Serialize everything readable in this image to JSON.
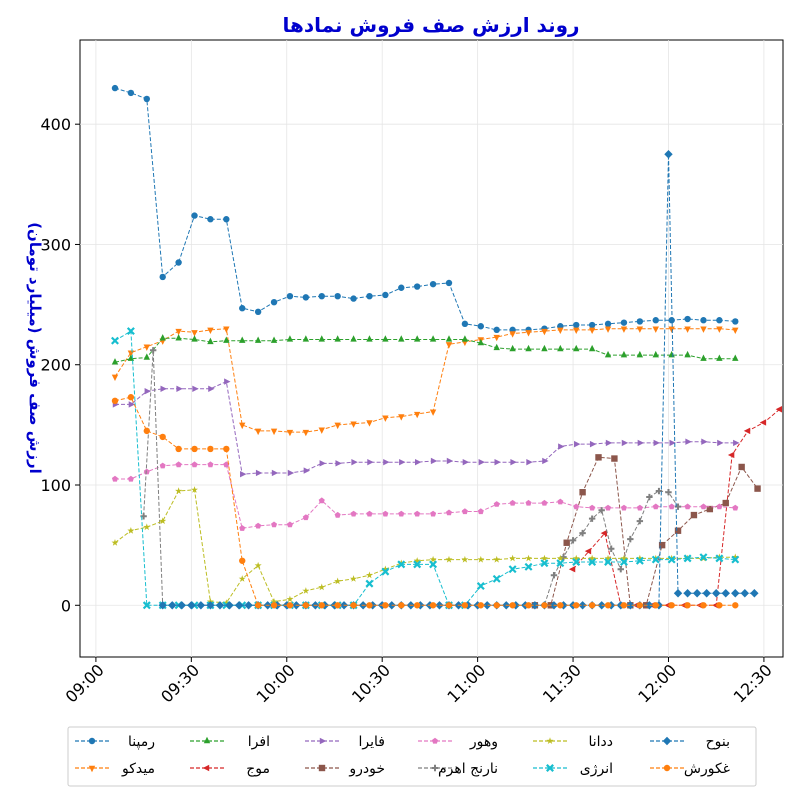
{
  "chart_data": {
    "type": "line",
    "title": "روند ارزش صف فروش نمادها",
    "xlabel": "",
    "ylabel": "ارزش صف فروش (میلیارد تومان)",
    "xlim": [
      "09:00",
      "12:30"
    ],
    "ylim": [
      -43,
      470
    ],
    "xticks": [
      "09:00",
      "09:30",
      "10:00",
      "10:30",
      "11:00",
      "11:30",
      "12:00",
      "12:30"
    ],
    "yticks": [
      0,
      100,
      200,
      300,
      400
    ],
    "grid": true,
    "legend_position": "bottom",
    "times": [
      "09:06",
      "09:09",
      "09:12",
      "09:15",
      "09:18",
      "09:21",
      "09:24",
      "09:27",
      "09:30",
      "09:33",
      "09:36",
      "09:39",
      "09:42",
      "09:45",
      "09:48",
      "09:51",
      "09:54",
      "09:57",
      "10:00",
      "10:03",
      "10:06",
      "10:09",
      "10:12",
      "10:15",
      "10:18",
      "10:21",
      "10:24",
      "10:27",
      "10:30",
      "10:33",
      "10:36",
      "10:39",
      "10:42",
      "10:45",
      "10:48",
      "10:51",
      "10:54",
      "10:57",
      "11:00",
      "11:03",
      "11:06",
      "11:09",
      "11:12",
      "11:15",
      "11:18",
      "11:21",
      "11:24",
      "11:27",
      "11:30",
      "11:33",
      "11:36",
      "11:39",
      "11:42",
      "11:45",
      "11:48",
      "11:51",
      "11:54",
      "11:57",
      "12:00",
      "12:03",
      "12:06",
      "12:09",
      "12:12",
      "12:15",
      "12:18",
      "12:21",
      "12:24",
      "12:27"
    ],
    "series": [
      {
        "name": "رمپنا",
        "color": "#1f77b4",
        "marker": "circle",
        "start": "09:06",
        "interval_min": 5,
        "values": [
          430,
          426,
          421,
          273,
          285,
          324,
          321,
          321,
          247,
          244,
          252,
          257,
          256,
          257,
          257,
          255,
          257,
          258,
          264,
          265,
          267,
          268,
          234,
          232,
          229,
          229,
          229,
          230,
          232,
          233,
          233,
          234,
          235,
          236,
          237,
          237,
          238,
          237,
          237,
          236
        ]
      },
      {
        "name": "میدکو",
        "color": "#ff7f0e",
        "marker": "tri-down",
        "start": "09:06",
        "interval_min": 5,
        "values": [
          190,
          210,
          215,
          220,
          228,
          227,
          229,
          230,
          150,
          145,
          145,
          144,
          144,
          146,
          150,
          151,
          152,
          156,
          157,
          159,
          161,
          217,
          219,
          221,
          223,
          226,
          227,
          228,
          229,
          229,
          229,
          230,
          230,
          230,
          230,
          230,
          230,
          230,
          230,
          229
        ]
      },
      {
        "name": "افرا",
        "color": "#2ca02c",
        "marker": "tri-up",
        "start": "09:06",
        "interval_min": 5,
        "values": [
          202,
          205,
          206,
          222,
          222,
          221,
          219,
          220,
          220,
          220,
          220,
          221,
          221,
          221,
          221,
          221,
          221,
          221,
          221,
          221,
          221,
          221,
          221,
          218,
          214,
          213,
          213,
          213,
          213,
          213,
          213,
          208,
          208,
          208,
          208,
          208,
          208,
          205,
          205,
          205
        ]
      },
      {
        "name": "موج",
        "color": "#d62728",
        "marker": "tri-left",
        "start": "11:30",
        "interval_min": 5,
        "values": [
          30,
          45,
          60,
          0,
          0,
          0,
          0,
          0,
          0,
          0,
          125,
          145,
          152,
          163
        ]
      },
      {
        "name": "فایرا",
        "color": "#9467bd",
        "marker": "tri-right",
        "start": "09:06",
        "interval_min": 5,
        "values": [
          167,
          167,
          178,
          180,
          180,
          180,
          180,
          186,
          109,
          110,
          110,
          110,
          112,
          118,
          118,
          119,
          119,
          119,
          119,
          119,
          120,
          120,
          119,
          119,
          119,
          119,
          119,
          120,
          132,
          134,
          134,
          135,
          135,
          135,
          135,
          135,
          136,
          136,
          135,
          135
        ]
      },
      {
        "name": "خودرو",
        "color": "#8c564b",
        "marker": "square",
        "start": "11:18",
        "interval_min": 5,
        "values": [
          0,
          0,
          52,
          94,
          123,
          122,
          0,
          0,
          50,
          62,
          75,
          80,
          85,
          115,
          97
        ]
      },
      {
        "name": "وهور",
        "color": "#e377c2",
        "marker": "pentagon",
        "start": "09:06",
        "interval_min": 5,
        "values": [
          105,
          105,
          111,
          116,
          117,
          117,
          117,
          117,
          64,
          66,
          67,
          67,
          73,
          87,
          75,
          76,
          76,
          76,
          76,
          76,
          76,
          77,
          78,
          78,
          84,
          85,
          85,
          85,
          86,
          82,
          81,
          81,
          81,
          81,
          82,
          82,
          82,
          82,
          82,
          81
        ]
      },
      {
        "name": "نارنج اهرم",
        "color": "#7f7f7f",
        "marker": "plus",
        "start": "09:15",
        "interval_min": 3,
        "values": [
          74,
          212,
          0,
          0,
          0,
          0,
          0,
          0,
          0,
          0,
          0,
          0,
          0,
          0,
          0,
          0,
          0,
          0,
          0,
          0,
          0,
          0,
          0,
          0,
          0,
          0,
          0,
          0,
          0,
          0,
          0,
          0,
          0,
          0,
          0,
          0,
          0,
          0,
          0,
          0,
          0,
          0,
          0,
          25,
          40,
          54,
          60,
          72,
          79,
          47,
          30,
          55,
          70,
          90,
          95,
          94,
          82
        ]
      },
      {
        "name": "ددانا",
        "color": "#bcbd22",
        "marker": "star",
        "start": "09:06",
        "interval_min": 5,
        "values": [
          52,
          62,
          65,
          70,
          95,
          96,
          3,
          2,
          22,
          33,
          3,
          5,
          12,
          15,
          20,
          22,
          25,
          30,
          35,
          37,
          38,
          38,
          38,
          38,
          38,
          39,
          39,
          39,
          39,
          39,
          39,
          39,
          39,
          39,
          39,
          39,
          39,
          39,
          40,
          40
        ]
      },
      {
        "name": "انرژی",
        "color": "#17becf",
        "marker": "x",
        "start": "09:06",
        "interval_min": 5,
        "values": [
          220,
          228,
          0,
          0,
          0,
          0,
          0,
          0,
          0,
          0,
          0,
          0,
          0,
          0,
          0,
          0,
          18,
          28,
          34,
          34,
          34,
          0,
          0,
          16,
          22,
          30,
          32,
          35,
          35,
          36,
          36,
          36,
          36,
          37,
          38,
          38,
          39,
          40,
          39,
          38
        ]
      },
      {
        "name": "بنوح",
        "color": "#1f77b4",
        "marker": "diamond",
        "start": "09:06",
        "interval_min": 3,
        "values": [
          null,
          null,
          null,
          null,
          null,
          0,
          0,
          0,
          0,
          0,
          0,
          0,
          0,
          0,
          0,
          0,
          0,
          0,
          0,
          0,
          0,
          0,
          0,
          0,
          0,
          0,
          0,
          0,
          0,
          0,
          0,
          0,
          0,
          0,
          0,
          0,
          0,
          0,
          0,
          0,
          0,
          0,
          0,
          0,
          0,
          0,
          0,
          0,
          0,
          0,
          0,
          0,
          0,
          0,
          0,
          0,
          0,
          0,
          375,
          10,
          10,
          10,
          10,
          10,
          10,
          10,
          10,
          10
        ]
      },
      {
        "name": "غکورش",
        "color": "#ff7f0e",
        "marker": "circle",
        "start": "09:06",
        "interval_min": 5,
        "values": [
          170,
          173,
          145,
          140,
          130,
          130,
          130,
          130,
          37,
          0,
          0,
          0,
          0,
          0,
          0,
          0,
          0,
          0,
          0,
          0,
          0,
          0,
          0,
          0,
          0,
          0,
          0,
          0,
          0,
          0,
          0,
          0,
          0,
          0,
          0,
          0,
          0,
          0,
          0,
          0
        ]
      }
    ]
  }
}
